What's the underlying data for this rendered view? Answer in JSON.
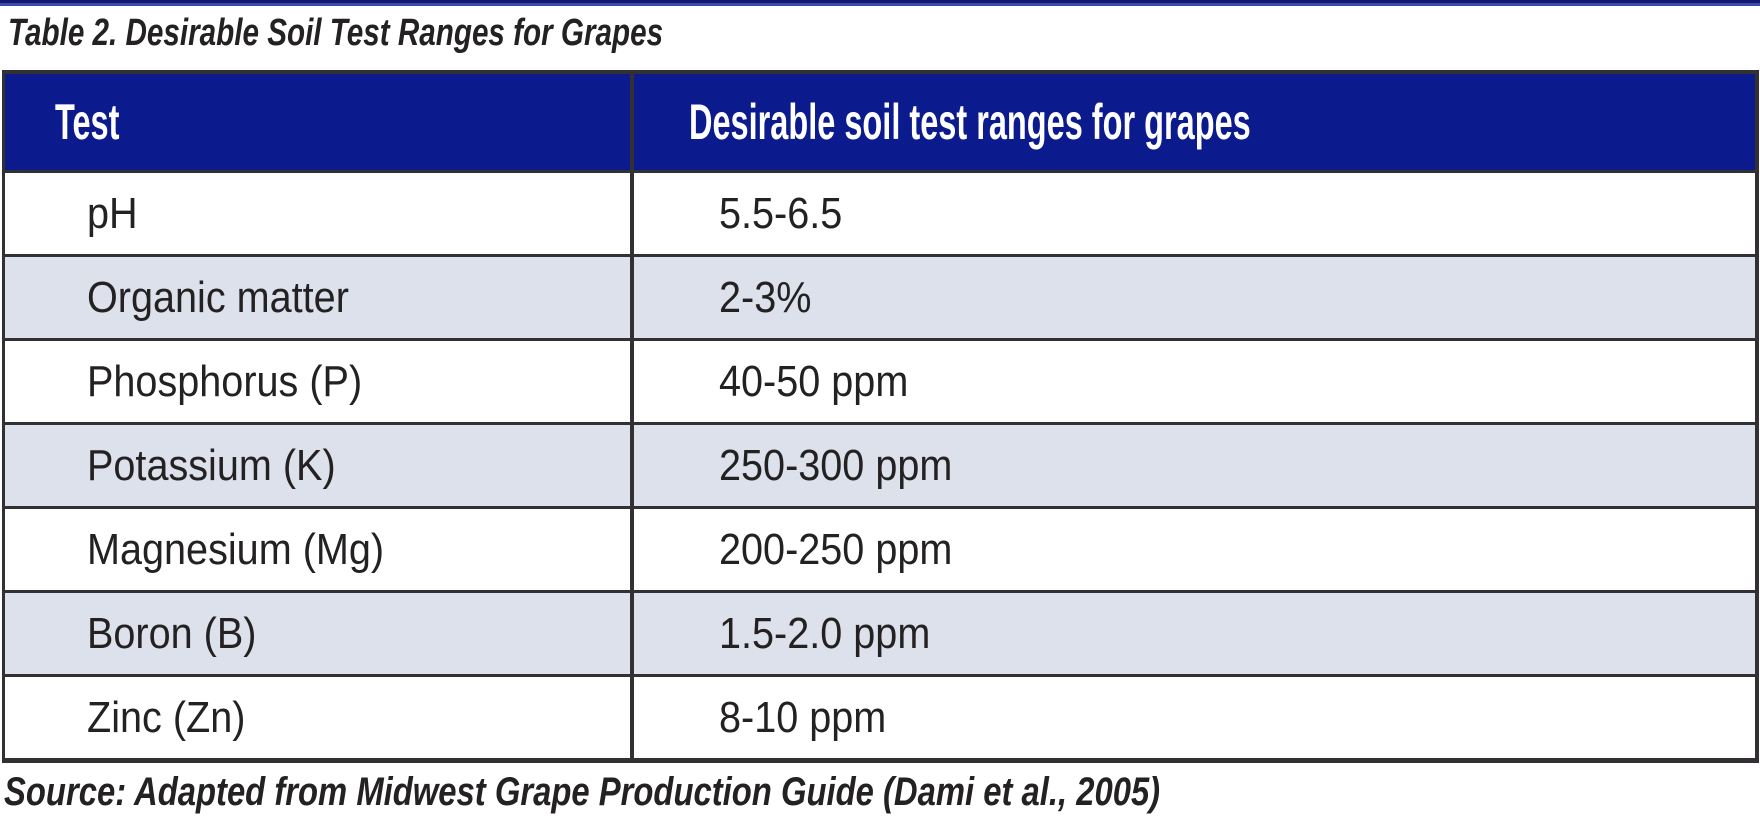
{
  "page": {
    "title": "Table 2. Desirable Soil Test Ranges for Grapes",
    "source": "Source: Adapted from Midwest Grape Production Guide (Dami et al., 2005)"
  },
  "table": {
    "columns": [
      {
        "label": "Test"
      },
      {
        "label": "Desirable soil test ranges for grapes"
      }
    ],
    "rows": [
      {
        "test": "pH",
        "range": "5.5-6.5"
      },
      {
        "test": "Organic matter",
        "range": "2-3%"
      },
      {
        "test": "Phosphorus (P)",
        "range": "40-50 ppm"
      },
      {
        "test": "Potassium (K)",
        "range": "250-300 ppm"
      },
      {
        "test": "Magnesium (Mg)",
        "range": "200-250 ppm"
      },
      {
        "test": "Boron (B)",
        "range": "1.5-2.0 ppm"
      },
      {
        "test": "Zinc (Zn)",
        "range": "8-10 ppm"
      }
    ]
  },
  "colors": {
    "page_bg": "#ffffff",
    "header_bg": "#0b1b8d",
    "header_text": "#ffffff",
    "row_bg": "#ffffff",
    "row_alt_bg": "#dde1ec",
    "border": "#333033",
    "text": "#242122",
    "rule_dark": "#15186e",
    "rule_light": "#3a49b4"
  }
}
